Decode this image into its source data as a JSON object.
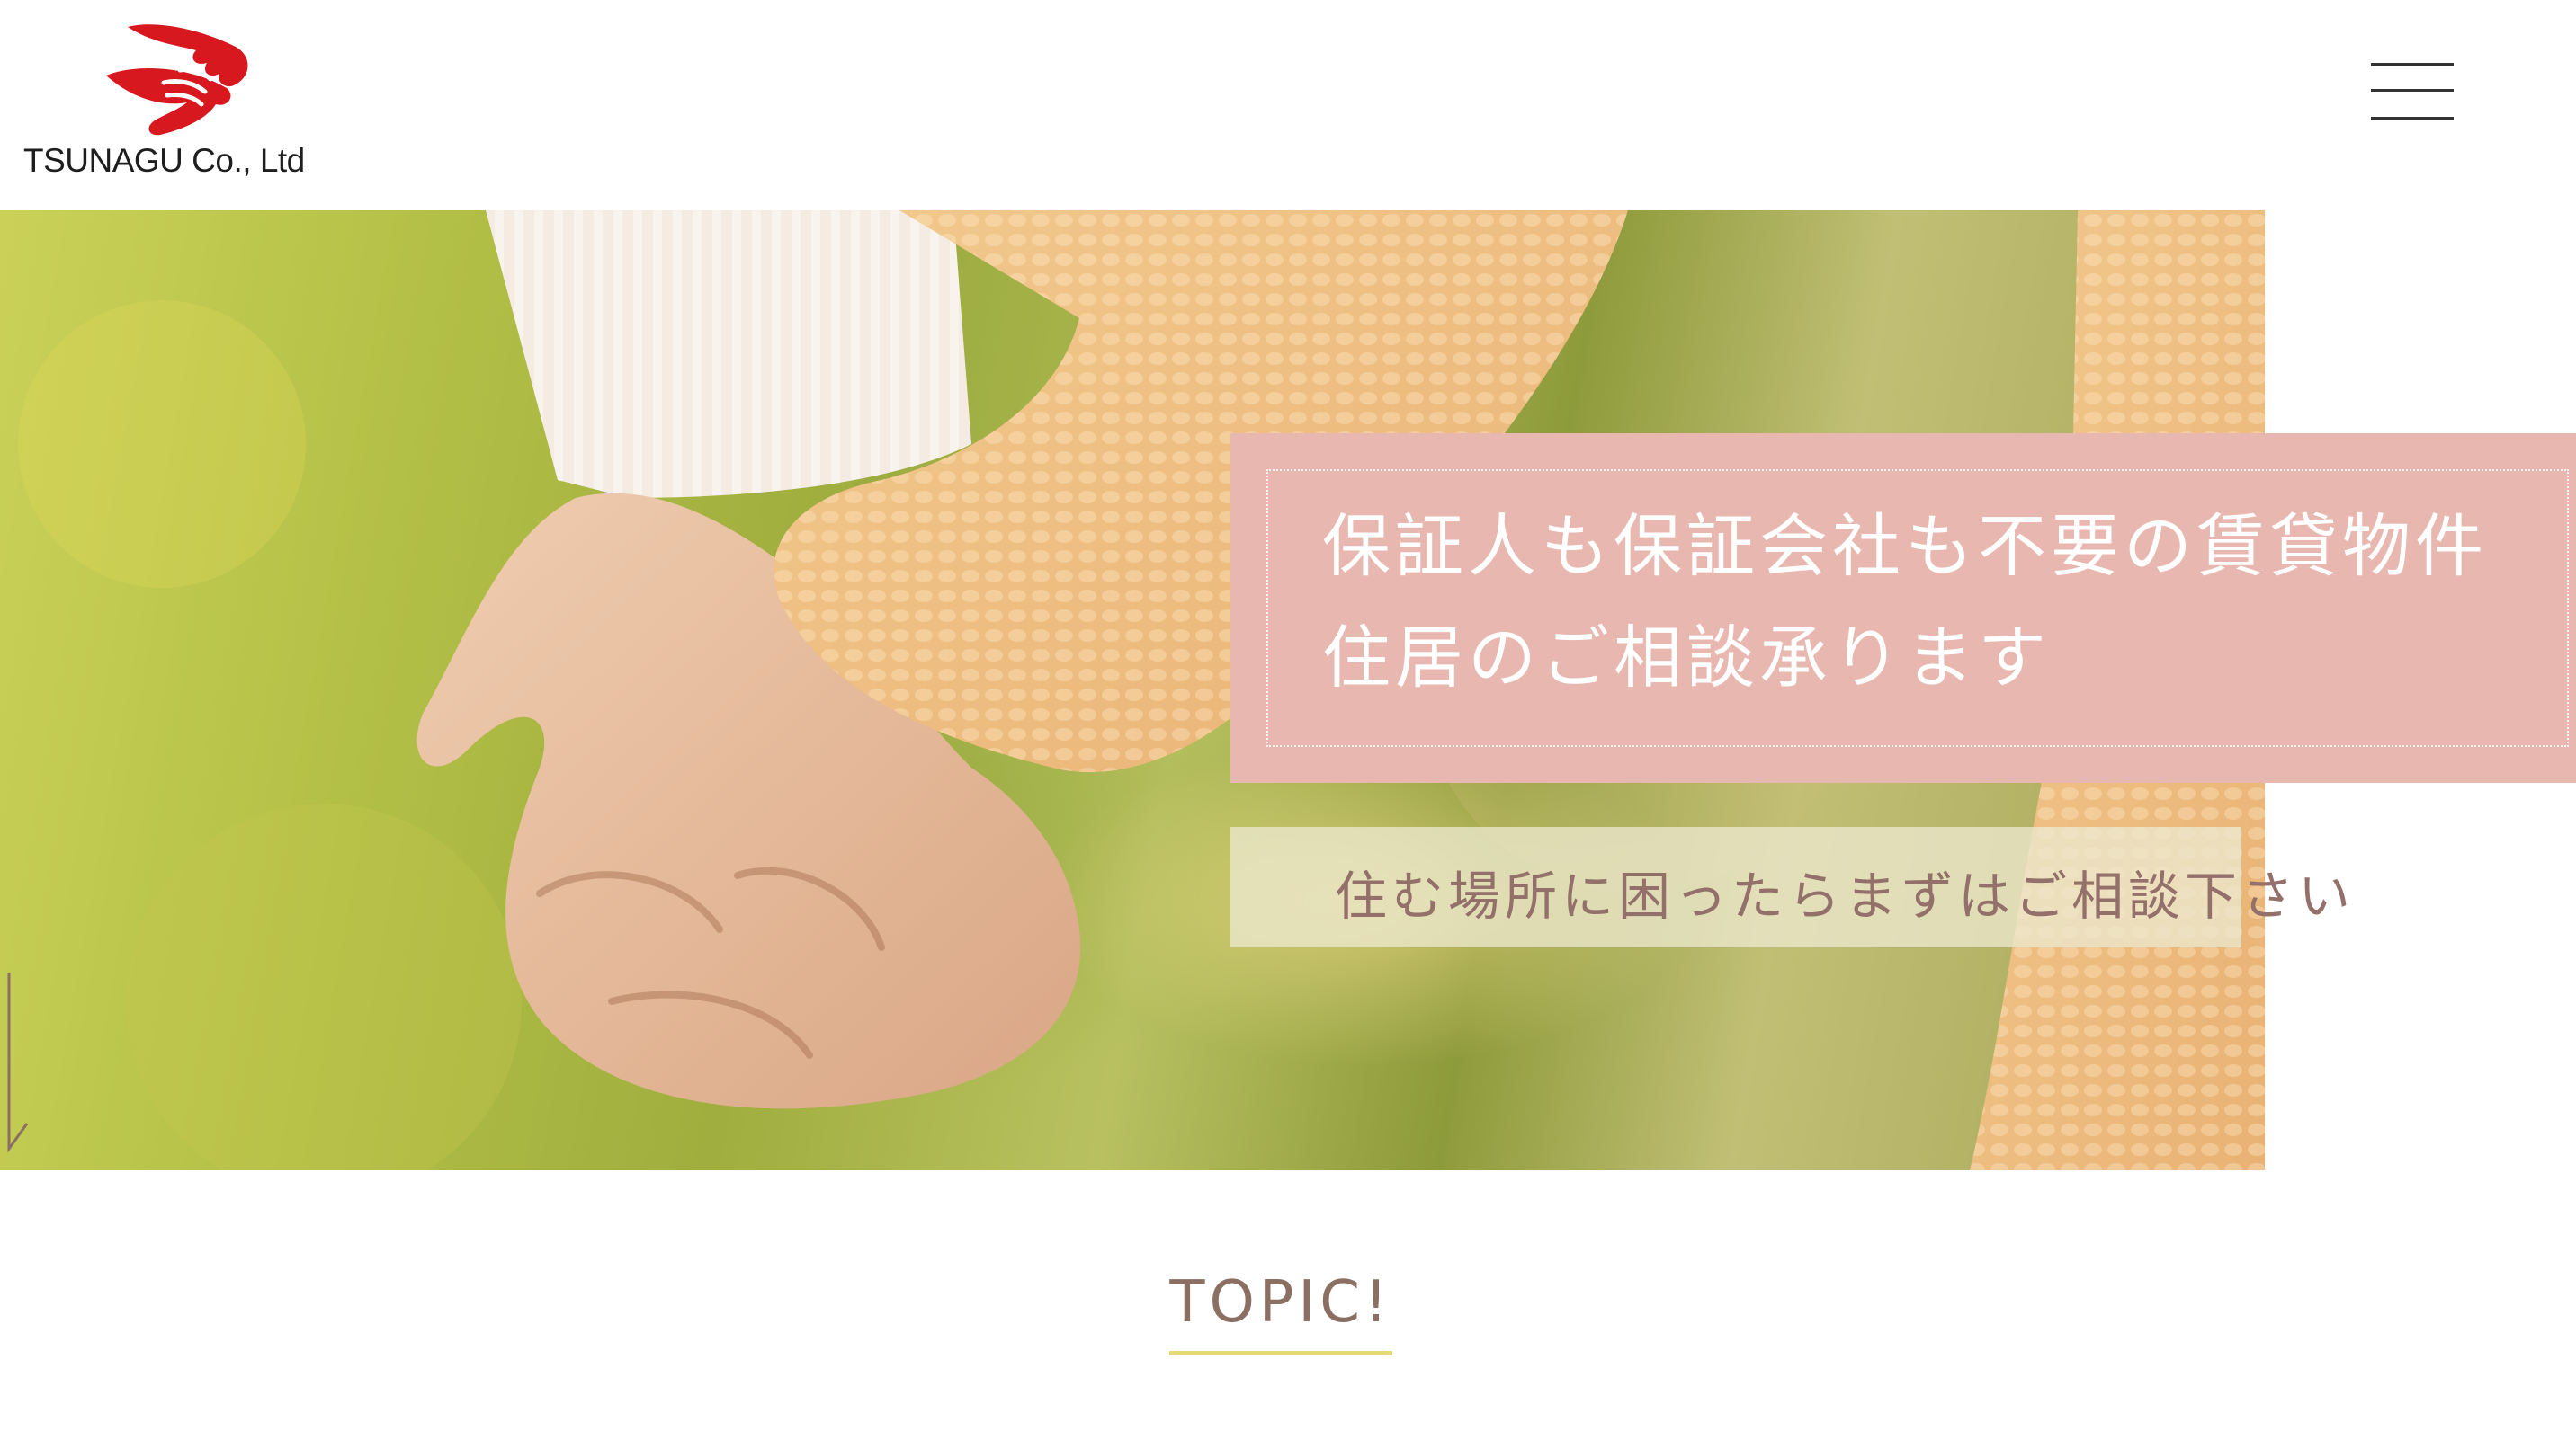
{
  "header": {
    "company_name": "TSUNAGU Co., Ltd",
    "menu_icon": "hamburger-menu-icon"
  },
  "hero": {
    "headline_line1": "保証人も保証会社も不要の賃貸物件",
    "headline_line2": "住居のご相談承ります",
    "subtext": "住む場所に困ったらまずはご相談下さい",
    "scroll_icon": "scroll-down-arrow-icon"
  },
  "section": {
    "topic_heading": "TOPIC!"
  },
  "colors": {
    "brand_red": "#d7191f",
    "headline_box": "#e8b7b0",
    "subtext_color": "#93706a",
    "topic_text": "#8b6f63",
    "topic_underline": "#e6da72"
  }
}
